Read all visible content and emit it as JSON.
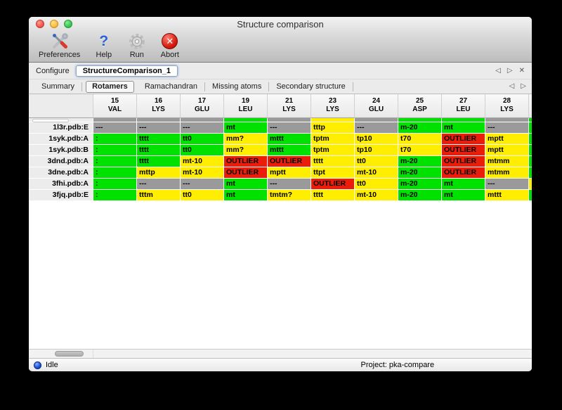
{
  "window": {
    "title": "Structure comparison"
  },
  "toolbar": {
    "buttons": [
      {
        "label": "Preferences",
        "icon": "tools-icon"
      },
      {
        "label": "Help",
        "icon": "question-icon",
        "glyph": "?"
      },
      {
        "label": "Run",
        "icon": "gear-icon"
      },
      {
        "label": "Abort",
        "icon": "abort-icon",
        "glyph": "✕"
      }
    ]
  },
  "configure": {
    "label": "Configure",
    "value": "StructureComparison_1",
    "nav_prev": "◁",
    "nav_next": "▷",
    "nav_close": "✕"
  },
  "tabs": {
    "items": [
      {
        "label": "Summary",
        "active": false
      },
      {
        "label": "Rotamers",
        "active": true
      },
      {
        "label": "Ramachandran",
        "active": false
      },
      {
        "label": "Missing atoms",
        "active": false
      },
      {
        "label": "Secondary structure",
        "active": false
      }
    ],
    "nav_prev": "◁",
    "nav_next": "▷"
  },
  "colors": {
    "ok": "#00e100",
    "warn": "#ffee00",
    "bad": "#ec1c0a",
    "missing": "#9a9a9a"
  },
  "table": {
    "columns": [
      {
        "num": "15",
        "res": "VAL"
      },
      {
        "num": "16",
        "res": "LYS"
      },
      {
        "num": "17",
        "res": "GLU"
      },
      {
        "num": "19",
        "res": "LEU"
      },
      {
        "num": "21",
        "res": "LYS"
      },
      {
        "num": "23",
        "res": "LYS"
      },
      {
        "num": "24",
        "res": "GLU"
      },
      {
        "num": "25",
        "res": "ASP"
      },
      {
        "num": "27",
        "res": "LEU"
      },
      {
        "num": "28",
        "res": "LYS"
      }
    ],
    "partial_row": {
      "statuses": [
        "missing",
        "missing",
        "missing",
        "ok",
        "missing",
        "warn",
        "missing",
        "ok",
        "ok",
        "missing"
      ],
      "edge": "ok"
    },
    "rows": [
      {
        "label": "1l3r.pdb:E",
        "edge": "ok",
        "cells": [
          {
            "t": "---",
            "s": "missing"
          },
          {
            "t": "---",
            "s": "missing"
          },
          {
            "t": "---",
            "s": "missing"
          },
          {
            "t": "mt",
            "s": "ok"
          },
          {
            "t": "---",
            "s": "missing"
          },
          {
            "t": "tttp",
            "s": "warn"
          },
          {
            "t": "---",
            "s": "missing"
          },
          {
            "t": "m-20",
            "s": "ok"
          },
          {
            "t": "mt",
            "s": "ok"
          },
          {
            "t": "---",
            "s": "missing"
          }
        ]
      },
      {
        "label": "1syk.pdb:A",
        "edge": "ok",
        "cells": [
          {
            "t": ":",
            "s": "ok"
          },
          {
            "t": "tttt",
            "s": "ok"
          },
          {
            "t": "tt0",
            "s": "ok"
          },
          {
            "t": "mm?",
            "s": "warn"
          },
          {
            "t": "mttt",
            "s": "ok"
          },
          {
            "t": "tptm",
            "s": "warn"
          },
          {
            "t": "tp10",
            "s": "warn"
          },
          {
            "t": "t70",
            "s": "warn"
          },
          {
            "t": "OUTLIER",
            "s": "bad"
          },
          {
            "t": "mptt",
            "s": "warn"
          }
        ]
      },
      {
        "label": "1syk.pdb:B",
        "edge": "ok",
        "cells": [
          {
            "t": ":",
            "s": "ok"
          },
          {
            "t": "tttt",
            "s": "ok"
          },
          {
            "t": "tt0",
            "s": "ok"
          },
          {
            "t": "mm?",
            "s": "warn"
          },
          {
            "t": "mttt",
            "s": "ok"
          },
          {
            "t": "tptm",
            "s": "warn"
          },
          {
            "t": "tp10",
            "s": "warn"
          },
          {
            "t": "t70",
            "s": "warn"
          },
          {
            "t": "OUTLIER",
            "s": "bad"
          },
          {
            "t": "mptt",
            "s": "warn"
          }
        ]
      },
      {
        "label": "3dnd.pdb:A",
        "edge": "ok",
        "cells": [
          {
            "t": ":",
            "s": "ok"
          },
          {
            "t": "tttt",
            "s": "ok"
          },
          {
            "t": "mt-10",
            "s": "warn"
          },
          {
            "t": "OUTLIER",
            "s": "bad"
          },
          {
            "t": "OUTLIER",
            "s": "bad"
          },
          {
            "t": "tttt",
            "s": "warn"
          },
          {
            "t": "tt0",
            "s": "warn"
          },
          {
            "t": "m-20",
            "s": "ok"
          },
          {
            "t": "OUTLIER",
            "s": "bad"
          },
          {
            "t": "mtmm",
            "s": "warn"
          }
        ]
      },
      {
        "label": "3dne.pdb:A",
        "edge": "ok",
        "cells": [
          {
            "t": ":",
            "s": "ok"
          },
          {
            "t": "mttp",
            "s": "warn"
          },
          {
            "t": "mt-10",
            "s": "warn"
          },
          {
            "t": "OUTLIER",
            "s": "bad"
          },
          {
            "t": "mptt",
            "s": "warn"
          },
          {
            "t": "ttpt",
            "s": "warn"
          },
          {
            "t": "mt-10",
            "s": "warn"
          },
          {
            "t": "m-20",
            "s": "ok"
          },
          {
            "t": "OUTLIER",
            "s": "bad"
          },
          {
            "t": "mtmm",
            "s": "warn"
          }
        ]
      },
      {
        "label": "3fhi.pdb:A",
        "edge": "warn",
        "cells": [
          {
            "t": ":",
            "s": "ok"
          },
          {
            "t": "---",
            "s": "missing"
          },
          {
            "t": "---",
            "s": "missing"
          },
          {
            "t": "mt",
            "s": "ok"
          },
          {
            "t": "---",
            "s": "missing"
          },
          {
            "t": "OUTLIER",
            "s": "bad"
          },
          {
            "t": "tt0",
            "s": "warn"
          },
          {
            "t": "m-20",
            "s": "ok"
          },
          {
            "t": "mt",
            "s": "ok"
          },
          {
            "t": "---",
            "s": "missing"
          }
        ]
      },
      {
        "label": "3fjq.pdb:E",
        "edge": "ok",
        "cells": [
          {
            "t": ":",
            "s": "ok"
          },
          {
            "t": "tttm",
            "s": "warn"
          },
          {
            "t": "tt0",
            "s": "warn"
          },
          {
            "t": "mt",
            "s": "ok"
          },
          {
            "t": "tmtm?",
            "s": "warn"
          },
          {
            "t": "tttt",
            "s": "warn"
          },
          {
            "t": "mt-10",
            "s": "warn"
          },
          {
            "t": "m-20",
            "s": "ok"
          },
          {
            "t": "mt",
            "s": "ok"
          },
          {
            "t": "mttt",
            "s": "warn"
          }
        ]
      }
    ]
  },
  "status_bar": {
    "state": "Idle",
    "project": "Project: pka-compare"
  }
}
